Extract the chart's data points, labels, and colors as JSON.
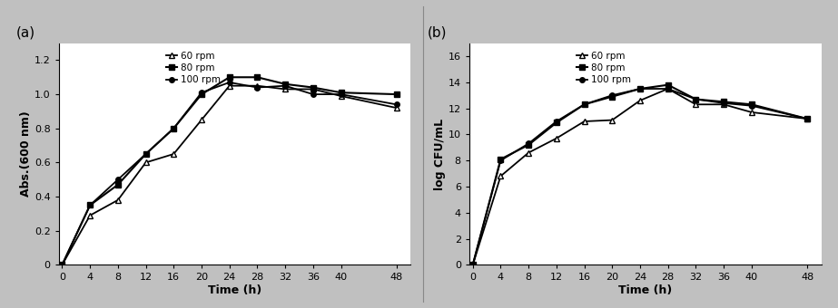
{
  "time": [
    0,
    4,
    8,
    12,
    16,
    20,
    24,
    28,
    32,
    36,
    40,
    48
  ],
  "abs_60rpm": [
    0,
    0.29,
    0.38,
    0.6,
    0.65,
    0.85,
    1.05,
    1.05,
    1.03,
    1.03,
    0.99,
    0.92
  ],
  "abs_80rpm": [
    0,
    0.35,
    0.47,
    0.65,
    0.8,
    1.0,
    1.1,
    1.1,
    1.06,
    1.04,
    1.01,
    1.0
  ],
  "abs_100rpm": [
    0,
    0.35,
    0.5,
    0.65,
    0.8,
    1.01,
    1.07,
    1.04,
    1.05,
    1.0,
    1.0,
    0.94
  ],
  "cfu_60rpm": [
    0,
    6.8,
    8.6,
    9.7,
    11.0,
    11.1,
    12.6,
    13.5,
    12.3,
    12.3,
    11.7,
    11.2
  ],
  "cfu_80rpm": [
    0,
    8.1,
    9.2,
    10.9,
    12.3,
    12.9,
    13.5,
    13.8,
    12.7,
    12.5,
    12.3,
    11.2
  ],
  "cfu_100rpm": [
    0,
    8.0,
    9.3,
    11.0,
    12.3,
    13.0,
    13.5,
    13.5,
    12.7,
    12.4,
    12.2,
    11.2
  ],
  "label_60": "60 rpm",
  "label_80": "80 rpm",
  "label_100": "100 rpm",
  "ylabel_a": "Abs.(600 nm)",
  "ylabel_b": "log CFU/mL",
  "xlabel": "Time (h)",
  "panel_a": "(a)",
  "panel_b": "(b)",
  "ylim_a": [
    0,
    1.3
  ],
  "ylim_b": [
    0,
    17
  ],
  "yticks_a": [
    0,
    0.2,
    0.4,
    0.6,
    0.8,
    1.0,
    1.2
  ],
  "yticks_b": [
    0,
    2,
    4,
    6,
    8,
    10,
    12,
    14,
    16
  ],
  "xticks": [
    0,
    4,
    8,
    12,
    16,
    20,
    24,
    28,
    32,
    36,
    40,
    48
  ],
  "color": "#000000",
  "bg_color": "#ffffff",
  "frame_color": "#c0c0c0"
}
